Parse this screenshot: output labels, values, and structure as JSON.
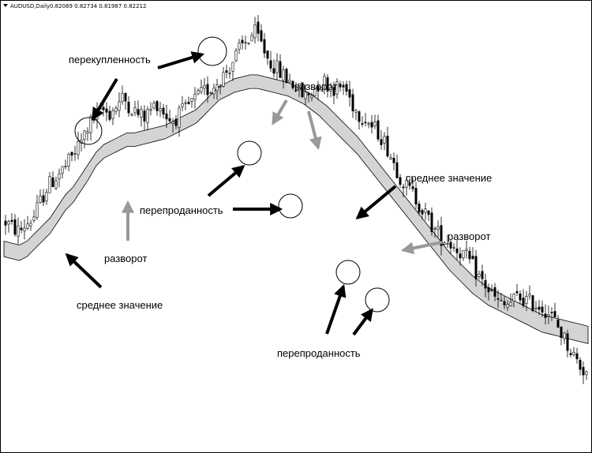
{
  "window": {
    "header_symbol": "AUDUSD,Daily",
    "header_ohlc": "0.82089 0.82734 0.81987 0.82212",
    "menu_icon": "triangle-down-icon"
  },
  "chart_data": {
    "type": "candlestick",
    "symbol": "AUDUSD",
    "timeframe": "Daily",
    "ohlc_last": {
      "open": 0.82089,
      "high": 0.82734,
      "low": 0.81987,
      "close": 0.82212
    },
    "colors": {
      "bull": "#ffffff",
      "bear": "#000000",
      "band_fill": "#d4d4d4",
      "arrow_black": "#000000",
      "arrow_gray": "#999999"
    },
    "legend_placement": "top-left",
    "grid": false,
    "close_path": [
      0.51,
      0.495,
      0.485,
      0.505,
      0.52,
      0.56,
      0.6,
      0.62,
      0.64,
      0.66,
      0.69,
      0.72,
      0.76,
      0.78,
      0.8,
      0.79,
      0.81,
      0.83,
      0.81,
      0.79,
      0.78,
      0.8,
      0.82,
      0.79,
      0.77,
      0.785,
      0.8,
      0.82,
      0.835,
      0.85,
      0.86,
      0.88,
      0.9,
      0.93,
      0.96,
      0.98,
      1.0,
      0.97,
      0.93,
      0.91,
      0.89,
      0.875,
      0.86,
      0.835,
      0.84,
      0.865,
      0.875,
      0.86,
      0.855,
      0.86,
      0.82,
      0.79,
      0.78,
      0.755,
      0.74,
      0.71,
      0.67,
      0.63,
      0.6,
      0.58,
      0.55,
      0.52,
      0.49,
      0.47,
      0.46,
      0.445,
      0.43,
      0.41,
      0.38,
      0.355,
      0.33,
      0.305,
      0.29,
      0.3,
      0.315,
      0.31,
      0.3,
      0.295,
      0.285,
      0.265,
      0.235,
      0.2,
      0.17,
      0.14,
      0.12
    ],
    "band": {
      "upper": [
        0.46,
        0.455,
        0.45,
        0.46,
        0.48,
        0.5,
        0.52,
        0.55,
        0.58,
        0.6,
        0.63,
        0.66,
        0.69,
        0.71,
        0.72,
        0.73,
        0.74,
        0.74,
        0.745,
        0.75,
        0.755,
        0.76,
        0.77,
        0.78,
        0.79,
        0.8,
        0.82,
        0.84,
        0.86,
        0.87,
        0.88,
        0.885,
        0.89,
        0.89,
        0.885,
        0.88,
        0.875,
        0.87,
        0.86,
        0.85,
        0.84,
        0.825,
        0.81,
        0.79,
        0.77,
        0.75,
        0.73,
        0.705,
        0.68,
        0.655,
        0.63,
        0.605,
        0.58,
        0.555,
        0.53,
        0.505,
        0.48,
        0.455,
        0.43,
        0.41,
        0.39,
        0.37,
        0.355,
        0.34,
        0.33,
        0.32,
        0.31,
        0.3,
        0.29,
        0.28,
        0.27,
        0.265,
        0.26,
        0.255,
        0.25,
        0.245,
        0.24
      ],
      "lower": [
        0.42,
        0.415,
        0.41,
        0.42,
        0.44,
        0.46,
        0.48,
        0.51,
        0.54,
        0.56,
        0.59,
        0.62,
        0.655,
        0.675,
        0.685,
        0.695,
        0.705,
        0.705,
        0.71,
        0.715,
        0.72,
        0.725,
        0.735,
        0.745,
        0.755,
        0.765,
        0.785,
        0.805,
        0.825,
        0.835,
        0.845,
        0.85,
        0.855,
        0.855,
        0.85,
        0.845,
        0.84,
        0.835,
        0.825,
        0.815,
        0.8,
        0.785,
        0.765,
        0.745,
        0.725,
        0.705,
        0.685,
        0.66,
        0.635,
        0.61,
        0.585,
        0.56,
        0.535,
        0.51,
        0.485,
        0.46,
        0.435,
        0.41,
        0.385,
        0.365,
        0.345,
        0.325,
        0.31,
        0.295,
        0.285,
        0.275,
        0.265,
        0.255,
        0.245,
        0.235,
        0.225,
        0.22,
        0.215,
        0.21,
        0.205,
        0.2,
        0.195
      ]
    },
    "annotations": {
      "overbought": "перекупленность",
      "oversold_1": "перепроданность",
      "oversold_2": "перепроданность",
      "reversal_1": "разворот",
      "reversal_2": "разворот",
      "reversal_3": "разворот",
      "average_1": "среднее значение",
      "average_2": "среднее значение"
    }
  }
}
